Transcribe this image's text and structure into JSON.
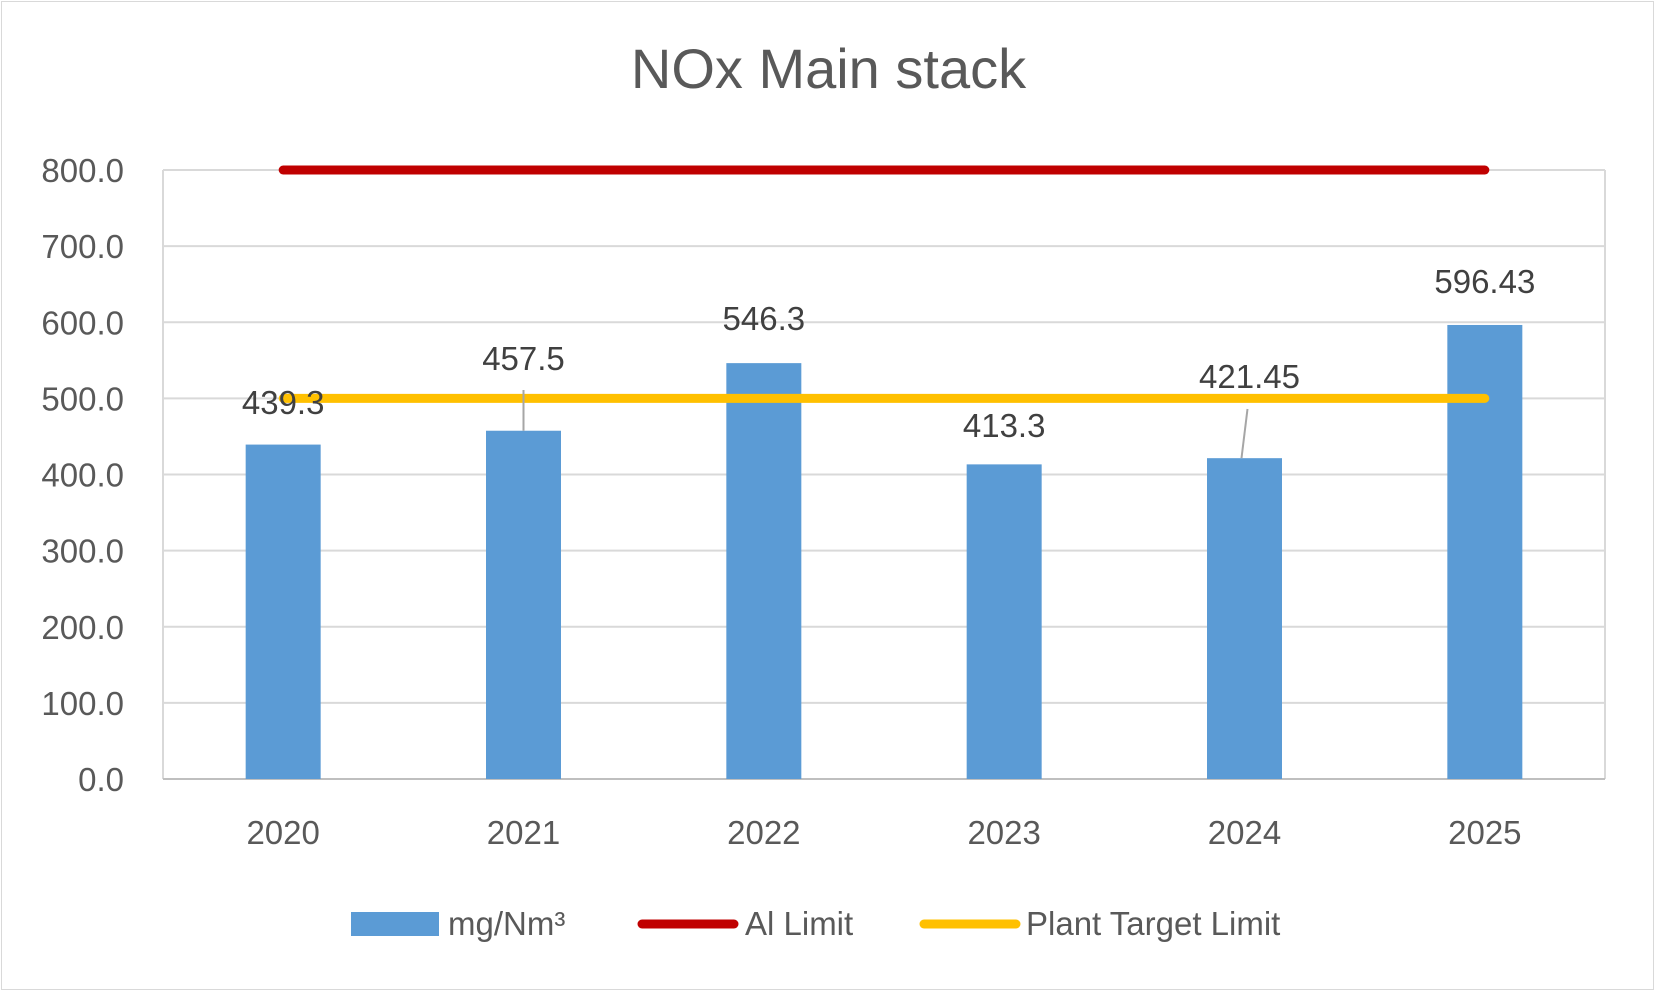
{
  "chart_data": {
    "type": "bar",
    "title": "NOx Main stack",
    "xlabel": "",
    "ylabel": "",
    "categories": [
      "2020",
      "2021",
      "2022",
      "2023",
      "2024",
      "2025"
    ],
    "ylim": [
      0,
      800
    ],
    "yticks": [
      "0.0",
      "100.0",
      "200.0",
      "300.0",
      "400.0",
      "500.0",
      "600.0",
      "700.0",
      "800.0"
    ],
    "grid": true,
    "legend_position": "bottom",
    "series": [
      {
        "name": "mg/Nm³",
        "kind": "bar",
        "color": "#5b9bd5",
        "values": [
          439.3,
          457.5,
          546.3,
          413.3,
          421.45,
          596.43
        ],
        "labels": [
          "439.3",
          "457.5",
          "546.3",
          "413.3",
          "421.45",
          "596.43"
        ]
      },
      {
        "name": "Al Limit",
        "kind": "line",
        "color": "#c00000",
        "values": [
          800,
          800,
          800,
          800,
          800,
          800
        ]
      },
      {
        "name": "Plant Target Limit",
        "kind": "line",
        "color": "#ffc000",
        "values": [
          500,
          500,
          500,
          500,
          500,
          500
        ]
      }
    ]
  }
}
